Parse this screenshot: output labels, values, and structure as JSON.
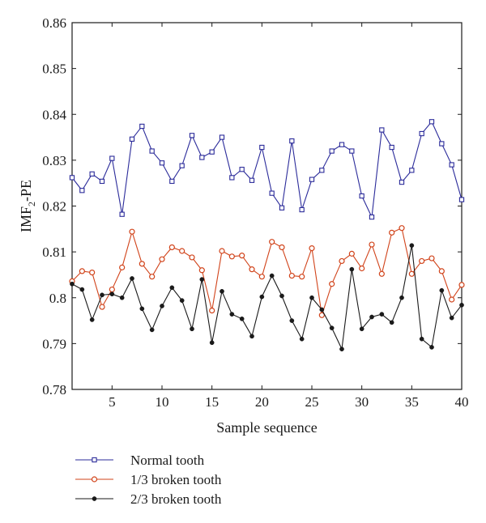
{
  "chart_data": {
    "type": "line",
    "xlabel": "Sample sequence",
    "ylabel": "IMF",
    "ylabel_sub": "2",
    "ylabel_suffix": "-PE",
    "xlim": [
      1,
      40
    ],
    "ylim": [
      0.78,
      0.86
    ],
    "xticks": [
      5,
      10,
      15,
      20,
      25,
      30,
      35,
      40
    ],
    "xtick_labels": [
      "5",
      "10",
      "15",
      "20",
      "25",
      "30",
      "35",
      "40"
    ],
    "yticks": [
      0.78,
      0.79,
      0.8,
      0.81,
      0.82,
      0.83,
      0.84,
      0.85,
      0.86
    ],
    "ytick_labels": [
      "0.78",
      "0.79",
      "0.8",
      "0.81",
      "0.82",
      "0.83",
      "0.84",
      "0.85",
      "0.86"
    ],
    "grid": false,
    "legend_position": "bottom",
    "x": [
      1,
      2,
      3,
      4,
      5,
      6,
      7,
      8,
      9,
      10,
      11,
      12,
      13,
      14,
      15,
      16,
      17,
      18,
      19,
      20,
      21,
      22,
      23,
      24,
      25,
      26,
      27,
      28,
      29,
      30,
      31,
      32,
      33,
      34,
      35,
      36,
      37,
      38,
      39,
      40
    ],
    "series": [
      {
        "name": "Normal tooth",
        "color": "#2b2b9a",
        "marker": "square",
        "values": [
          0.8262,
          0.8234,
          0.827,
          0.8254,
          0.8304,
          0.8182,
          0.8346,
          0.8374,
          0.832,
          0.8294,
          0.8254,
          0.8288,
          0.8354,
          0.8306,
          0.8318,
          0.835,
          0.8262,
          0.828,
          0.8256,
          0.8328,
          0.8228,
          0.8196,
          0.8342,
          0.8192,
          0.8258,
          0.8278,
          0.832,
          0.8334,
          0.832,
          0.8222,
          0.8176,
          0.8366,
          0.8328,
          0.8252,
          0.8278,
          0.8358,
          0.8384,
          0.8336,
          0.829,
          0.8214
        ]
      },
      {
        "name": "1/3 broken tooth",
        "color": "#d1431a",
        "marker": "circle",
        "values": [
          0.8036,
          0.8058,
          0.8055,
          0.798,
          0.8018,
          0.8066,
          0.8144,
          0.8074,
          0.8046,
          0.8084,
          0.811,
          0.8102,
          0.8088,
          0.806,
          0.7972,
          0.8102,
          0.809,
          0.8092,
          0.8062,
          0.8046,
          0.8122,
          0.811,
          0.8048,
          0.8046,
          0.8108,
          0.7962,
          0.803,
          0.808,
          0.8096,
          0.8064,
          0.8116,
          0.8052,
          0.8142,
          0.8152,
          0.8052,
          0.808,
          0.8086,
          0.8058,
          0.7996,
          0.8028
        ]
      },
      {
        "name": "2/3 broken tooth",
        "color": "#1a1a1a",
        "marker": "dot",
        "values": [
          0.803,
          0.8018,
          0.7952,
          0.8006,
          0.8008,
          0.8,
          0.8042,
          0.7976,
          0.793,
          0.7982,
          0.8022,
          0.7994,
          0.7932,
          0.804,
          0.7902,
          0.8014,
          0.7964,
          0.7954,
          0.7916,
          0.8002,
          0.8048,
          0.8004,
          0.795,
          0.791,
          0.8,
          0.7974,
          0.7934,
          0.7888,
          0.8062,
          0.7932,
          0.7958,
          0.7964,
          0.7946,
          0.8,
          0.8114,
          0.791,
          0.7892,
          0.8016,
          0.7956,
          0.7984
        ]
      }
    ]
  }
}
